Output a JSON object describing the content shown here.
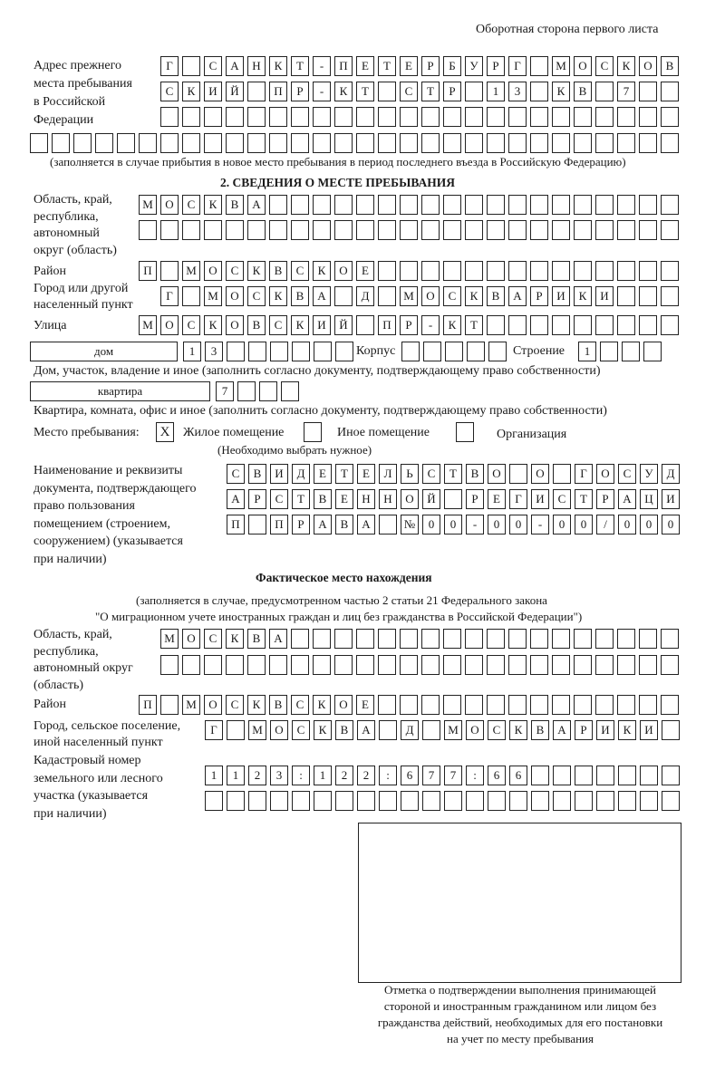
{
  "page_header": "Оборотная сторона первого листа",
  "previous_address": {
    "label": "Адрес прежнего\nместа пребывания\nв Российской\nФедерации",
    "rows": [
      [
        "Г",
        "",
        "С",
        "А",
        "Н",
        "К",
        "Т",
        "-",
        "П",
        "Е",
        "Т",
        "Е",
        "Р",
        "Б",
        "У",
        "Р",
        "Г",
        "",
        "М",
        "О",
        "С",
        "К",
        "О",
        "В"
      ],
      [
        "С",
        "К",
        "И",
        "Й",
        "",
        "П",
        "Р",
        "-",
        "К",
        "Т",
        "",
        "С",
        "Т",
        "Р",
        "",
        "1",
        "3",
        "",
        "К",
        "В",
        "",
        "7"
      ],
      [],
      []
    ],
    "note": "(заполняется в случае прибытия в новое место пребывания в период последнего въезда в Российскую Федерацию)"
  },
  "stay": {
    "heading": "2. СВЕДЕНИЯ О МЕСТЕ ПРЕБЫВАНИЯ",
    "region_label": "Область, край,\nреспублика,\nавтономный\nокруг (область)",
    "region_rows": [
      [
        "М",
        "О",
        "С",
        "К",
        "В",
        "А"
      ],
      []
    ],
    "district_label": "Район",
    "district": [
      "П",
      "",
      "М",
      "О",
      "С",
      "К",
      "В",
      "С",
      "К",
      "О",
      "Е"
    ],
    "city_label": "Город или другой\nнаселенный пункт",
    "city": [
      "Г",
      "",
      "М",
      "О",
      "С",
      "К",
      "В",
      "А",
      "",
      "Д",
      "",
      "М",
      "О",
      "С",
      "К",
      "В",
      "А",
      "Р",
      "И",
      "К",
      "И"
    ],
    "street_label": "Улица",
    "street": [
      "М",
      "О",
      "С",
      "К",
      "О",
      "В",
      "С",
      "К",
      "И",
      "Й",
      "",
      "П",
      "Р",
      "-",
      "К",
      "Т"
    ],
    "house_type": "дом",
    "house": [
      "1",
      "3"
    ],
    "korpus_label": "Корпус",
    "korpus": [],
    "building_label": "Строение",
    "building": [
      "1"
    ],
    "house_note": "Дом, участок, владение и иное (заполнить согласно документу, подтверждающему право собственности)",
    "apartment_type": "квартира",
    "apartment": [
      "7"
    ],
    "apartment_note": "Квартира, комната, офис и иное (заполнить согласно документу, подтверждающему право собственности)",
    "place_label": "Место пребывания:",
    "place_options": [
      {
        "label": "Жилое помещение",
        "mark": "X"
      },
      {
        "label": "Иное помещение",
        "mark": ""
      },
      {
        "label": "Организация",
        "mark": ""
      }
    ],
    "place_note": "(Необходимо выбрать нужное)",
    "document_label": "Наименование и реквизиты\nдокумента, подтверждающего\nправо пользования\nпомещением (строением,\nсооружением) (указывается\nпри наличии)",
    "document_rows": [
      [
        "С",
        "В",
        "И",
        "Д",
        "Е",
        "Т",
        "Е",
        "Л",
        "Ь",
        "С",
        "Т",
        "В",
        "О",
        "",
        "О",
        "",
        "Г",
        "О",
        "С",
        "У",
        "Д"
      ],
      [
        "А",
        "Р",
        "С",
        "Т",
        "В",
        "Е",
        "Н",
        "Н",
        "О",
        "Й",
        "",
        "Р",
        "Е",
        "Г",
        "И",
        "С",
        "Т",
        "Р",
        "А",
        "Ц",
        "И"
      ],
      [
        "П",
        "",
        "П",
        "Р",
        "А",
        "В",
        "А",
        "",
        "№",
        "0",
        "0",
        "-",
        "0",
        "0",
        "-",
        "0",
        "0",
        "/",
        "0",
        "0",
        "0"
      ]
    ]
  },
  "actual": {
    "heading": "Фактическое место нахождения",
    "sub1": "(заполняется в случае, предусмотренном частью 2 статьи 21 Федерального закона",
    "sub2": "\"О миграционном учете иностранных граждан и лиц без гражданства в Российской Федерации\")",
    "region_label": "Область, край,\nреспублика,\nавтономный округ\n(область)",
    "region_rows": [
      [
        "М",
        "О",
        "С",
        "К",
        "В",
        "А"
      ],
      []
    ],
    "district_label": "Район",
    "district": [
      "П",
      "",
      "М",
      "О",
      "С",
      "К",
      "В",
      "С",
      "К",
      "О",
      "Е"
    ],
    "city_label": "Город, сельское поселение,\nиной населенный пункт",
    "city": [
      "Г",
      "",
      "М",
      "О",
      "С",
      "К",
      "В",
      "А",
      "",
      "Д",
      "",
      "М",
      "О",
      "С",
      "К",
      "В",
      "А",
      "Р",
      "И",
      "К",
      "И"
    ],
    "cadastral_label": "Кадастровый номер\nземельного или лесного\nучастка (указывается\nпри наличии)",
    "cadastral_rows": [
      [
        "1",
        "1",
        "2",
        "3",
        ":",
        "1",
        "2",
        "2",
        ":",
        "6",
        "7",
        "7",
        ":",
        "6",
        "6"
      ],
      []
    ]
  },
  "stamp_caption": "Отметка о подтверждении выполнения принимающей\nстороной и иностранным гражданином или лицом без\nгражданства действий, необходимых для его постановки\nна учет по месту пребывания"
}
